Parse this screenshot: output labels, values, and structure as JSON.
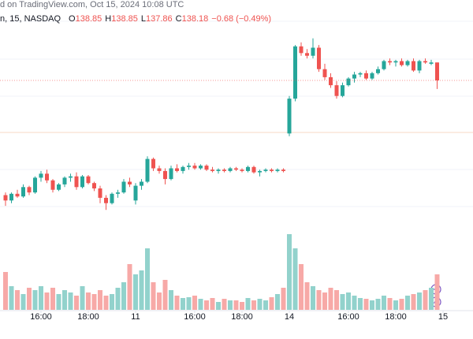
{
  "header": {
    "credit": "d on TradingView.com, Oct 15, 2024 10:08 UTC",
    "symbol": "n, 15, NASDAQ",
    "fields": [
      {
        "label": "O",
        "value": "138.85"
      },
      {
        "label": "H",
        "value": "138.85"
      },
      {
        "label": "L",
        "value": "137.86"
      },
      {
        "label": "C",
        "value": "138.18"
      }
    ],
    "change": "−0.68 (−0.49%)"
  },
  "chart_data": {
    "type": "candlestick",
    "up_color": "#26a69a",
    "down_color": "#ef5350",
    "up_volume_color": "#92d2cc",
    "down_volume_color": "#f7a9a7",
    "ylim": [
      132.65,
      141.18
    ],
    "vlim": [
      0,
      100
    ],
    "xlim": [
      -1,
      75
    ],
    "xticks": [
      {
        "value": 6,
        "label": "16:00"
      },
      {
        "value": 14,
        "label": "18:00"
      },
      {
        "value": 22,
        "label": "11"
      },
      {
        "value": 32,
        "label": "16:00"
      },
      {
        "value": 40,
        "label": "18:00"
      },
      {
        "value": 48,
        "label": "14"
      },
      {
        "value": 58,
        "label": "16:00"
      },
      {
        "value": 66,
        "label": "18:00"
      },
      {
        "value": 74,
        "label": "15"
      }
    ],
    "open": [
      133.9,
      133.7,
      133.95,
      133.85,
      134.2,
      134.0,
      134.55,
      134.7,
      134.45,
      134.1,
      134.3,
      134.55,
      134.6,
      134.2,
      134.6,
      134.35,
      134.15,
      133.8,
      133.6,
      133.95,
      134.0,
      134.4,
      133.7,
      134.25,
      134.4,
      135.25,
      134.9,
      134.8,
      134.5,
      134.9,
      134.8,
      134.95,
      135.0,
      134.9,
      135.0,
      134.85,
      134.8,
      134.85,
      134.8,
      134.9,
      134.85,
      134.8,
      134.95,
      134.75,
      134.8,
      134.85,
      134.8,
      134.85,
      136.2,
      137.5,
      139.45,
      139.2,
      139.1,
      139.4,
      138.6,
      138.3,
      138.0,
      137.6,
      138.0,
      138.25,
      138.4,
      138.45,
      138.25,
      138.45,
      138.6,
      138.9,
      138.85,
      138.9,
      138.75,
      138.9,
      138.55,
      138.9,
      138.8,
      138.85
    ],
    "high": [
      134.0,
      134.0,
      134.1,
      134.3,
      134.25,
      134.6,
      134.8,
      134.85,
      134.5,
      134.35,
      134.6,
      134.7,
      134.75,
      134.65,
      134.65,
      134.4,
      134.25,
      133.9,
      134.0,
      134.1,
      134.5,
      134.55,
      134.35,
      134.5,
      135.35,
      135.3,
      135.0,
      134.9,
      135.0,
      135.05,
      135.0,
      135.1,
      135.1,
      135.05,
      135.05,
      134.95,
      134.9,
      134.9,
      134.95,
      134.95,
      134.9,
      135.0,
      135.0,
      134.85,
      134.9,
      134.9,
      134.9,
      134.9,
      137.6,
      139.5,
      139.6,
      139.35,
      139.75,
      139.5,
      138.8,
      138.45,
      138.15,
      138.1,
      138.3,
      138.5,
      138.5,
      138.55,
      138.5,
      138.7,
      138.95,
      139.0,
      138.95,
      139.0,
      138.95,
      139.0,
      138.95,
      139.0,
      138.95,
      138.85
    ],
    "low": [
      133.5,
      133.6,
      133.8,
      133.8,
      133.9,
      133.95,
      134.4,
      134.35,
      134.0,
      134.05,
      134.2,
      134.4,
      134.1,
      134.15,
      134.3,
      134.05,
      133.6,
      133.35,
      133.55,
      133.8,
      133.95,
      134.2,
      133.55,
      134.1,
      134.35,
      134.8,
      134.7,
      134.3,
      134.45,
      134.75,
      134.7,
      134.85,
      134.85,
      134.85,
      134.8,
      134.75,
      134.7,
      134.75,
      134.75,
      134.8,
      134.75,
      134.75,
      134.7,
      134.6,
      134.75,
      134.75,
      134.75,
      134.75,
      136.1,
      137.4,
      139.1,
      139.0,
      139.0,
      138.5,
      138.2,
      137.9,
      137.5,
      137.55,
      137.95,
      138.1,
      138.3,
      138.2,
      138.2,
      138.4,
      138.55,
      138.75,
      138.7,
      138.7,
      138.7,
      138.5,
      138.45,
      138.8,
      138.75,
      137.86
    ],
    "close": [
      133.7,
      133.95,
      133.85,
      134.2,
      134.0,
      134.55,
      134.7,
      134.45,
      134.1,
      134.3,
      134.55,
      134.6,
      134.2,
      134.6,
      134.35,
      134.15,
      133.8,
      133.6,
      133.95,
      134.0,
      134.4,
      134.3,
      134.25,
      134.4,
      135.25,
      134.9,
      134.8,
      134.5,
      134.9,
      134.8,
      134.95,
      135.0,
      134.9,
      135.0,
      134.85,
      134.8,
      134.85,
      134.8,
      134.9,
      134.85,
      134.8,
      134.95,
      134.75,
      134.8,
      134.85,
      134.8,
      134.85,
      134.8,
      137.5,
      139.45,
      139.2,
      139.1,
      139.4,
      138.6,
      138.3,
      138.0,
      137.6,
      138.0,
      138.25,
      138.4,
      138.45,
      138.25,
      138.45,
      138.6,
      138.9,
      138.85,
      138.9,
      138.75,
      138.9,
      138.55,
      138.9,
      138.85,
      138.85,
      138.18
    ],
    "volume": [
      48,
      30,
      25,
      20,
      28,
      25,
      30,
      22,
      28,
      20,
      25,
      22,
      18,
      30,
      22,
      20,
      25,
      18,
      20,
      28,
      35,
      58,
      45,
      50,
      78,
      35,
      22,
      38,
      25,
      18,
      15,
      16,
      18,
      14,
      12,
      15,
      10,
      14,
      12,
      12,
      10,
      15,
      12,
      14,
      12,
      16,
      20,
      28,
      96,
      78,
      58,
      35,
      30,
      25,
      22,
      28,
      25,
      20,
      22,
      18,
      15,
      14,
      12,
      14,
      18,
      15,
      12,
      14,
      18,
      20,
      22,
      25,
      28,
      45
    ]
  }
}
